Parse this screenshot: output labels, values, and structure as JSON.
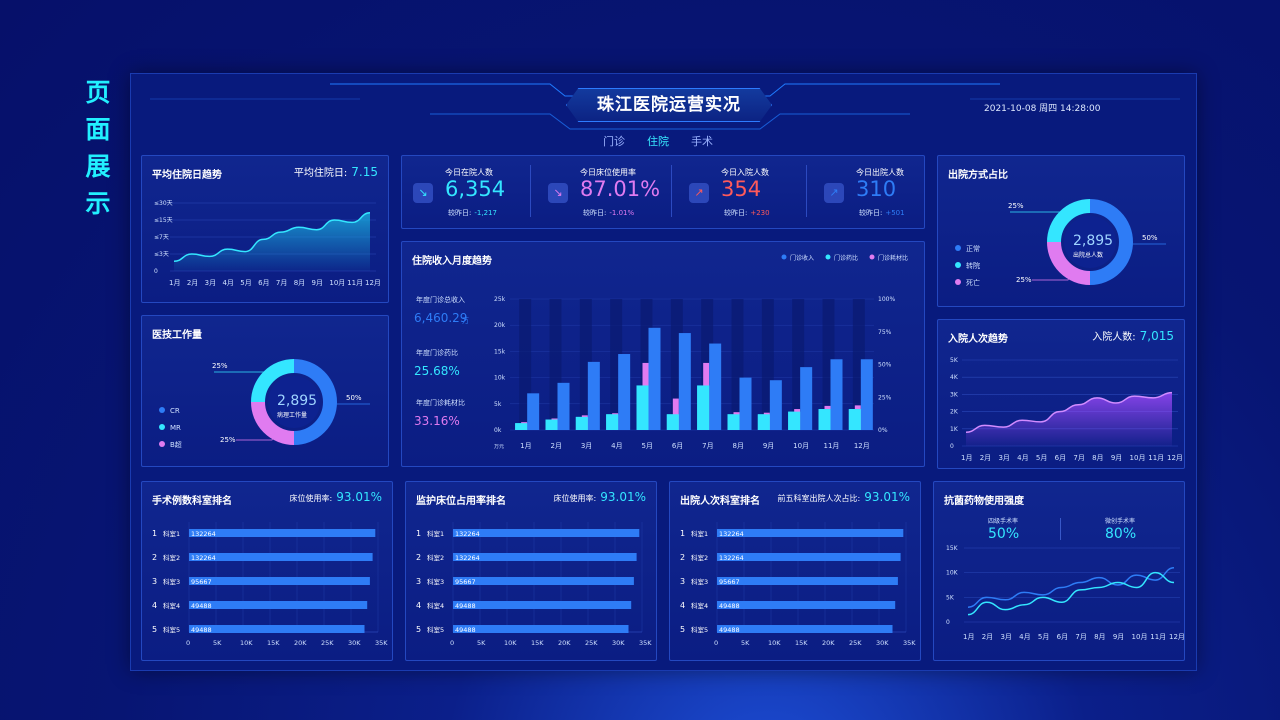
{
  "side_title": [
    "页",
    "面",
    "展",
    "示"
  ],
  "header": {
    "title": "珠江医院运营实况",
    "datetime": "2021-10-08  周四 14:28:00"
  },
  "tabs": [
    {
      "label": "门诊",
      "active": false
    },
    {
      "label": "住院",
      "active": true
    },
    {
      "label": "手术",
      "active": false
    }
  ],
  "colors": {
    "cyan": "#34e6ff",
    "blue": "#2e7cf6",
    "pink": "#e07bf0",
    "red": "#ff5a5a",
    "purple": "#b266ff"
  },
  "avg_stay": {
    "title": "平均住院日趋势",
    "label": "平均住院日:",
    "value": "7.15",
    "y_ticks": [
      "≤30天",
      "≤15天",
      "≤7天",
      "≤3天",
      "0"
    ],
    "months": [
      "1月",
      "2月",
      "3月",
      "4月",
      "5月",
      "6月",
      "7月",
      "8月",
      "9月",
      "10月",
      "11月",
      "12月"
    ],
    "values": [
      2,
      3.5,
      3,
      4.5,
      4,
      6.5,
      8,
      9,
      8.5,
      10.5,
      10,
      12
    ]
  },
  "kpis": [
    {
      "label": "今日在院人数",
      "value": "6,354",
      "cmp_label": "较昨日:",
      "cmp": "-1,217",
      "icon": "trend-down-icon",
      "glyph": "↘",
      "color": "#34e6ff",
      "cmp_color": "#34e6ff"
    },
    {
      "label": "今日床位使用率",
      "value": "87.01%",
      "cmp_label": "较昨日:",
      "cmp": "-1.01%",
      "icon": "trend-down-icon",
      "glyph": "↘",
      "color": "#e07bf0",
      "cmp_color": "#e07bf0"
    },
    {
      "label": "今日入院人数",
      "value": "354",
      "cmp_label": "较昨日:",
      "cmp": "+230",
      "icon": "trend-up-icon",
      "glyph": "↗",
      "color": "#ff5a5a",
      "cmp_color": "#ff5a5a"
    },
    {
      "label": "今日出院人数",
      "value": "310",
      "cmp_label": "较昨日:",
      "cmp": "+501",
      "icon": "trend-up-icon",
      "glyph": "↗",
      "color": "#2e7cf6",
      "cmp_color": "#2e7cf6"
    }
  ],
  "discharge": {
    "title": "出院方式占比",
    "center_value": "2,895",
    "center_label": "出院总人数",
    "pct_left": "25%",
    "pct_right": "50%",
    "pct_bottom": "25%",
    "legend": [
      {
        "name": "正常",
        "color": "#2e7cf6"
      },
      {
        "name": "转院",
        "color": "#34e6ff"
      },
      {
        "name": "死亡",
        "color": "#e07bf0"
      }
    ]
  },
  "medtech": {
    "title": "医技工作量",
    "center_value": "2,895",
    "center_label": "病理工作量",
    "pct_left": "25%",
    "pct_right": "50%",
    "pct_bottom": "25%",
    "legend": [
      {
        "name": "CR",
        "color": "#2e7cf6"
      },
      {
        "name": "MR",
        "color": "#34e6ff"
      },
      {
        "name": "B超",
        "color": "#e07bf0"
      }
    ]
  },
  "revenue": {
    "title": "住院收入月度趋势",
    "legend": [
      "门诊收入",
      "门诊药比",
      "门诊耗材比"
    ],
    "stats": [
      {
        "label": "年度门诊总收入",
        "value": "6,460.29",
        "unit": "万"
      },
      {
        "label": "年度门诊药比",
        "value": "25.68%"
      },
      {
        "label": "年度门诊耗材比",
        "value": "33.16%"
      }
    ],
    "y_left": [
      "25k",
      "20k",
      "15k",
      "10k",
      "5k",
      "0k"
    ],
    "y_right": [
      "100%",
      "75%",
      "50%",
      "25%",
      "0%"
    ],
    "unit": "万元",
    "months": [
      "1月",
      "2月",
      "3月",
      "4月",
      "5月",
      "6月",
      "7月",
      "8月",
      "9月",
      "10月",
      "11月",
      "12月"
    ],
    "income": [
      7,
      9,
      13,
      14.5,
      19.5,
      18.5,
      16.5,
      10,
      9.5,
      12,
      13.5,
      13.5
    ],
    "drug": [
      1.3,
      2,
      2.5,
      3,
      8.5,
      3,
      8.5,
      3,
      3,
      3.5,
      4,
      4
    ],
    "material": [
      1.5,
      2.2,
      2.8,
      3.2,
      12.8,
      6,
      12.8,
      3.4,
      3.3,
      4,
      4.6,
      4.7
    ]
  },
  "admission": {
    "title": "入院人次趋势",
    "label": "入院人数:",
    "value": "7,015",
    "y_ticks": [
      "5K",
      "4K",
      "3K",
      "2K",
      "1K",
      "0"
    ],
    "months": [
      "1月",
      "2月",
      "3月",
      "4月",
      "5月",
      "6月",
      "7月",
      "8月",
      "9月",
      "10月",
      "11月",
      "12月"
    ],
    "values": [
      0.8,
      1.2,
      1.1,
      1.5,
      1.4,
      2.0,
      2.4,
      2.8,
      2.5,
      2.9,
      2.8,
      3.1
    ]
  },
  "rank_panels": [
    {
      "title": "手术例数科室排名",
      "right_label": "床位使用率:",
      "right_value": "93.01%"
    },
    {
      "title": "监护床位占用率排名",
      "right_label": "床位使用率:",
      "right_value": "93.01%"
    },
    {
      "title": "出院人次科室排名",
      "right_label": "前五科室出院人次占比:",
      "right_value": "93.01%"
    }
  ],
  "rank_rows": [
    {
      "rank": "1",
      "dept": "科室1",
      "value": "132264"
    },
    {
      "rank": "2",
      "dept": "科室2",
      "value": "132264"
    },
    {
      "rank": "3",
      "dept": "科室3",
      "value": "95667"
    },
    {
      "rank": "4",
      "dept": "科室4",
      "value": "49488"
    },
    {
      "rank": "5",
      "dept": "科室5",
      "value": "49488"
    }
  ],
  "rank_bar_values": [
    34.5,
    34,
    33.5,
    33,
    32.5
  ],
  "rank_x_ticks": [
    "0",
    "5K",
    "10K",
    "15K",
    "20K",
    "25K",
    "30K",
    "35K"
  ],
  "antibiotic": {
    "title": "抗菌药物使用强度",
    "stat1_label": "四级手术率",
    "stat1_value": "50%",
    "stat2_label": "微创手术率",
    "stat2_value": "80%",
    "y_ticks": [
      "15K",
      "10K",
      "5K",
      "0"
    ],
    "months": [
      "1月",
      "2月",
      "3月",
      "4月",
      "5月",
      "6月",
      "7月",
      "8月",
      "9月",
      "10月",
      "11月",
      "12月"
    ],
    "series_a": [
      3,
      5,
      4.5,
      6,
      5.5,
      7,
      8,
      9,
      7.5,
      9.5,
      8.5,
      11
    ],
    "series_b": [
      1.5,
      4,
      2.5,
      3.5,
      5,
      4,
      6.5,
      7,
      8,
      7,
      10,
      8
    ]
  }
}
